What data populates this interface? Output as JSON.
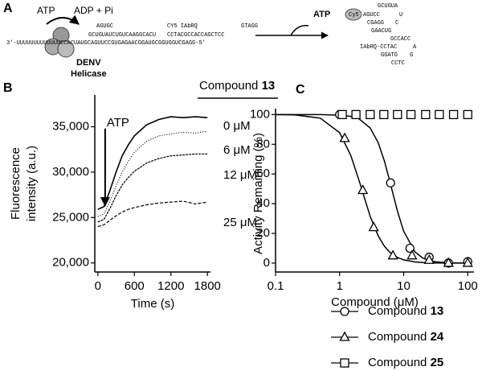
{
  "diagram": {
    "panel_label": "A",
    "atp_left": "ATP",
    "adp": "ADP + Pi",
    "seq_top1": "AGUGC",
    "seq_top2": "CY5 IAbRQ",
    "seq_top3": "GTAGG",
    "seq_mid1": "GCUGUAUCUGUCAAGGCACU",
    "seq_mid2": "CCTACGCCACCAGCTCC",
    "seq_bottom": "3'-UUUUUUUUUUUUUCCACUAUGCAGUUCCGUGAGAACGGAUGCGGUGGUCGAGG-5'",
    "helicase1": "DENV",
    "helicase2": "Helicase",
    "atp_right": "ATP",
    "hp_cy5": "Cy5",
    "hp1": "GCUGUA",
    "hp2": "AGUCC",
    "hp3": "U",
    "hp4": "CGAGG",
    "hp5": "C",
    "hp6": "GAACUG",
    "hp7": "GCCACC",
    "hp8": "IAbRQ-CCTAC",
    "hp9": "A",
    "hp10": "GGATG",
    "hp11": "G",
    "hp12": "CCTC"
  },
  "chart_data": [
    {
      "type": "line",
      "panel_label": "B",
      "xlabel": "Time (s)",
      "ylabel": [
        "Fluorescence",
        "intensity (a.u.)"
      ],
      "legend_title": "Compound 13",
      "legend": "right",
      "annotation": {
        "text": "ATP",
        "x": 120,
        "y_from": 34800,
        "y_to": 26300
      },
      "x": [
        0,
        100,
        200,
        300,
        400,
        500,
        600,
        800,
        1000,
        1200,
        1400,
        1600,
        1800
      ],
      "xlim": [
        -50,
        1850
      ],
      "xticks": [
        0,
        600,
        1200,
        1800
      ],
      "ylim": [
        19000,
        38500
      ],
      "yticks": [
        {
          "value": 20000,
          "label": "20,000"
        },
        {
          "value": 25000,
          "label": "25,000"
        },
        {
          "value": 30000,
          "label": "30,000"
        },
        {
          "value": 35000,
          "label": "35,000"
        }
      ],
      "series": [
        {
          "name": "0 μM",
          "color": "#000000",
          "dash": "none",
          "values": [
            25900,
            26200,
            28000,
            30000,
            31800,
            33000,
            34000,
            35200,
            35800,
            36100,
            36000,
            36100,
            36000
          ]
        },
        {
          "name": "6 μM",
          "color": "#000000",
          "dash": "1 2",
          "values": [
            25100,
            25400,
            26800,
            28500,
            30000,
            31200,
            32200,
            33400,
            34000,
            34200,
            34400,
            34300,
            34500
          ]
        },
        {
          "name": "12 μM",
          "color": "#000000",
          "dash": "3 1",
          "values": [
            24500,
            24800,
            26000,
            27400,
            28600,
            29400,
            30100,
            31000,
            31500,
            31800,
            31900,
            32000,
            32000
          ]
        },
        {
          "name": "25 μM",
          "color": "#000000",
          "dash": "4 2",
          "values": [
            24000,
            24200,
            24700,
            25200,
            25600,
            25900,
            26100,
            26400,
            26600,
            26700,
            26800,
            26500,
            26700
          ]
        }
      ]
    },
    {
      "type": "scatter",
      "panel_label": "C",
      "xlabel": "Compound (μM)",
      "ylabel": "Activity Remaining (%)",
      "log_x": true,
      "legend": "below",
      "xlim": [
        0.1,
        125
      ],
      "xticks": [
        0.1,
        1,
        10,
        100
      ],
      "ylim": [
        -6,
        104
      ],
      "yticks": [
        0,
        20,
        40,
        60,
        80,
        100
      ],
      "series": [
        {
          "name": "Compound 13",
          "color": "#000000",
          "marker": "circle",
          "x": [
            1,
            6.25,
            12.5,
            25,
            50,
            100
          ],
          "values": [
            100,
            54,
            10,
            4,
            0,
            1
          ]
        },
        {
          "name": "Compound 24",
          "color": "#000000",
          "marker": "triangle",
          "x": [
            1.2,
            2.3,
            3.4,
            6.8,
            13.5,
            25,
            50,
            100
          ],
          "values": [
            84,
            49,
            24,
            5,
            5,
            2,
            0,
            0
          ]
        },
        {
          "name": "Compound 25",
          "color": "#000000",
          "marker": "square",
          "x": [
            1.1,
            1.8,
            3,
            4.9,
            8,
            13,
            22,
            36,
            60,
            100
          ],
          "values": [
            100,
            100,
            100,
            100,
            100,
            100,
            100,
            100,
            100,
            100
          ]
        }
      ],
      "fits": [
        {
          "color": "#000000",
          "x": [
            0.1,
            0.2,
            0.5,
            1,
            1.5,
            2,
            3,
            4,
            5,
            6,
            7,
            8,
            10,
            15,
            20,
            30,
            50,
            100
          ],
          "values": [
            100,
            100,
            100,
            99.6,
            98.8,
            97.2,
            91.0,
            81.1,
            68.7,
            56.0,
            44.5,
            34.9,
            21.5,
            7.5,
            3.3,
            1.0,
            0.2,
            0
          ]
        },
        {
          "color": "#000000",
          "x": [
            0.1,
            0.2,
            0.5,
            1,
            1.5,
            2,
            3,
            4,
            5,
            6,
            7,
            8,
            10,
            15,
            20,
            30,
            50,
            100
          ],
          "values": [
            100,
            99.8,
            97.6,
            87.8,
            72.3,
            55.9,
            31.5,
            18.3,
            11.4,
            7.5,
            5.3,
            3.8,
            2.2,
            0.8,
            0.4,
            0.15,
            0.04,
            0
          ]
        }
      ]
    }
  ]
}
